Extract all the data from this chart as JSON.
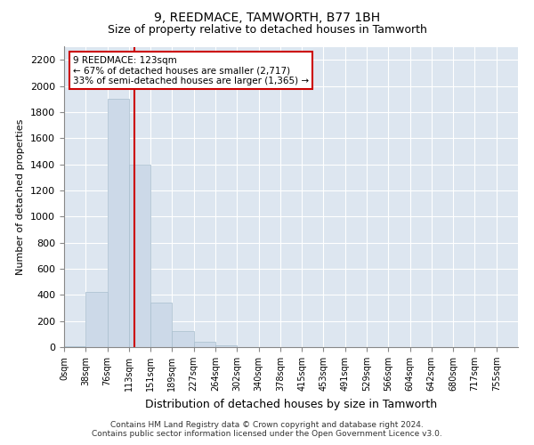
{
  "title": "9, REEDMACE, TAMWORTH, B77 1BH",
  "subtitle": "Size of property relative to detached houses in Tamworth",
  "xlabel": "Distribution of detached houses by size in Tamworth",
  "ylabel": "Number of detached properties",
  "footer_line1": "Contains HM Land Registry data © Crown copyright and database right 2024.",
  "footer_line2": "Contains public sector information licensed under the Open Government Licence v3.0.",
  "bin_labels": [
    "0sqm",
    "38sqm",
    "76sqm",
    "113sqm",
    "151sqm",
    "189sqm",
    "227sqm",
    "264sqm",
    "302sqm",
    "340sqm",
    "378sqm",
    "415sqm",
    "453sqm",
    "491sqm",
    "529sqm",
    "566sqm",
    "604sqm",
    "642sqm",
    "680sqm",
    "717sqm",
    "755sqm"
  ],
  "bar_values": [
    5,
    420,
    1900,
    1400,
    340,
    120,
    40,
    15,
    2,
    0,
    0,
    0,
    0,
    0,
    0,
    0,
    0,
    0,
    0,
    0,
    0
  ],
  "bar_color": "#ccd9e8",
  "bar_edgecolor": "#a8bece",
  "vline_color": "#cc0000",
  "ylim": [
    0,
    2300
  ],
  "yticks": [
    0,
    200,
    400,
    600,
    800,
    1000,
    1200,
    1400,
    1600,
    1800,
    2000,
    2200
  ],
  "annotation_text": "9 REEDMACE: 123sqm\n← 67% of detached houses are smaller (2,717)\n33% of semi-detached houses are larger (1,365) →",
  "annotation_box_facecolor": "#ffffff",
  "annotation_box_edgecolor": "#cc0000",
  "background_color": "#dde6f0",
  "grid_color": "#ffffff",
  "title_fontsize": 10,
  "subtitle_fontsize": 9,
  "ylabel_fontsize": 8,
  "xlabel_fontsize": 9,
  "tick_fontsize": 7,
  "annotation_fontsize": 7.5
}
